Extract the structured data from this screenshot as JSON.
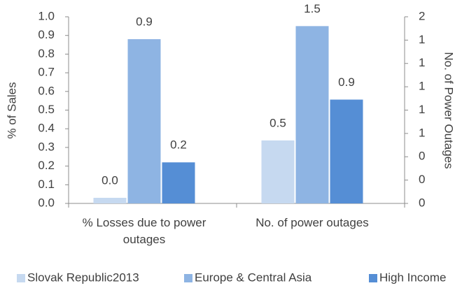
{
  "chart_data": {
    "type": "bar",
    "categories": [
      "% Losses due to power outages",
      "No. of power outages"
    ],
    "category_axes": [
      "y",
      "y2"
    ],
    "ylabel": "% of Sales",
    "y2label": "No. of Power Outages",
    "ylim": [
      0,
      1.0
    ],
    "yticks": [
      {
        "value": 0,
        "label": "0.0"
      },
      0.1,
      0.2,
      0.3,
      0.4,
      0.5,
      0.6,
      0.7,
      0.8,
      0.9,
      {
        "value": 1,
        "label": "1.0"
      }
    ],
    "y2lim": [
      0,
      1.6
    ],
    "y2ticks": [
      0,
      {
        "value": 0.2,
        "label": "0"
      },
      {
        "value": 0.4,
        "label": "0"
      },
      {
        "value": 0.6,
        "label": "1"
      },
      {
        "value": 0.8,
        "label": "1"
      },
      1,
      {
        "value": 1.2,
        "label": "1"
      },
      {
        "value": 1.4,
        "label": "1"
      },
      {
        "value": 1.6,
        "label": "2"
      }
    ],
    "series": [
      {
        "name": "Slovak Republic2013",
        "color": "#c6d9f0",
        "values": [
          0.03,
          0.54
        ],
        "value_labels": [
          "0.0",
          "0.5"
        ]
      },
      {
        "name": "Europe & Central Asia",
        "color": "#8eb4e3",
        "values": [
          0.88,
          1.52
        ],
        "value_labels": [
          "0.9",
          "1.5"
        ]
      },
      {
        "name": "High Income",
        "color": "#558ed5",
        "values": [
          0.22,
          0.89
        ],
        "value_labels": [
          "0.2",
          "0.9"
        ]
      }
    ],
    "legend": "bottom"
  }
}
